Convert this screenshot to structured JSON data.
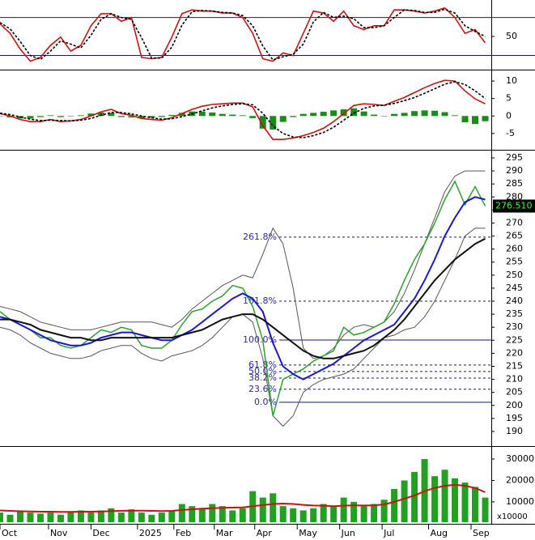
{
  "chart_data": [
    {
      "type": "stochastic",
      "ylim": [
        -1,
        105
      ],
      "yticks": [
        50
      ],
      "levels": [
        20,
        80
      ],
      "series": [
        {
          "color": "#cc1111",
          "values": [
            70,
            55,
            30,
            11,
            17,
            36,
            49,
            27,
            36,
            67,
            86,
            86,
            74,
            80,
            17,
            15,
            17,
            49,
            86,
            92,
            90,
            90,
            87,
            87,
            80,
            55,
            15,
            11,
            24,
            20,
            55,
            90,
            87,
            74,
            90,
            67,
            61,
            67,
            67,
            92,
            92,
            90,
            87,
            90,
            95,
            80,
            55,
            61,
            40
          ]
        },
        {
          "color": "#000000",
          "dashed": true,
          "values": [
            72,
            62,
            42,
            20,
            14,
            27,
            43,
            38,
            32,
            52,
            77,
            86,
            80,
            77,
            48,
            16,
            16,
            33,
            68,
            89,
            91,
            90,
            88,
            87,
            83,
            67,
            35,
            13,
            18,
            22,
            38,
            73,
            88,
            80,
            82,
            78,
            64,
            64,
            67,
            80,
            92,
            91,
            88,
            88,
            93,
            87,
            67,
            58,
            50
          ]
        }
      ]
    },
    {
      "type": "macd",
      "ylim": [
        -9.2,
        12.8
      ],
      "yticks": [
        10,
        5,
        0,
        -5
      ],
      "histogram": {
        "color": "#1a8a1a",
        "values": [
          -0.1,
          -0.4,
          -0.7,
          -0.7,
          -0.3,
          0.2,
          -0.3,
          0,
          0.2,
          0.7,
          1.0,
          0.9,
          -0.3,
          -0.4,
          -0.7,
          -0.5,
          -0.3,
          0.3,
          0.9,
          1.3,
          1.3,
          1.0,
          0.6,
          0.4,
          0.2,
          -0.6,
          -3.6,
          -3.9,
          -1.7,
          -0.3,
          0.6,
          0.9,
          1.2,
          1.6,
          1.9,
          2.2,
          1.3,
          0.4,
          -0.1,
          0.6,
          0.9,
          1.4,
          1.6,
          1.5,
          1.1,
          0.2,
          -1.8,
          -2.3,
          -1.5
        ]
      },
      "series": [
        {
          "color": "#cc1111",
          "values": [
            0.7,
            0,
            -1,
            -1.6,
            -1.6,
            -1,
            -1.6,
            -1.4,
            -1,
            0,
            1.2,
            1.9,
            0.7,
            0.2,
            -0.7,
            -1,
            -1.2,
            -0.5,
            0.7,
            1.9,
            2.8,
            3.3,
            3.5,
            3.7,
            3.7,
            2.6,
            -2.8,
            -6.7,
            -6.7,
            -6.3,
            -5.6,
            -4.7,
            -3.5,
            -1.6,
            0.7,
            3.0,
            3.5,
            3.3,
            3.0,
            4.2,
            5.3,
            6.7,
            8.1,
            9.3,
            10.2,
            10.0,
            7.2,
            4.9,
            3.5
          ]
        },
        {
          "color": "#000000",
          "dashed": true,
          "values": [
            0.8,
            0.4,
            -0.3,
            -0.9,
            -1.3,
            -1.2,
            -1.3,
            -1.4,
            -1.2,
            -0.7,
            0.2,
            1.0,
            1.0,
            0.6,
            0.0,
            -0.5,
            -0.9,
            -0.8,
            -0.2,
            0.6,
            1.5,
            2.3,
            2.9,
            3.3,
            3.5,
            3.2,
            0.8,
            -2.8,
            -5.0,
            -6.0,
            -6.2,
            -5.6,
            -4.7,
            -3.2,
            -1.2,
            0.8,
            2.2,
            2.9,
            3.1,
            3.6,
            4.4,
            5.3,
            6.5,
            7.8,
            9.1,
            9.8,
            9.0,
            7.2,
            5.0
          ]
        }
      ]
    },
    {
      "type": "price",
      "ylim": [
        184.7,
        297.8
      ],
      "yticks": [
        190,
        195,
        200,
        205,
        210,
        215,
        220,
        225,
        230,
        235,
        240,
        245,
        250,
        255,
        260,
        265,
        270,
        275,
        280,
        285,
        290,
        295
      ],
      "series": [
        {
          "color": "#555555",
          "width": 1,
          "values": [
            238,
            237,
            236,
            234,
            232,
            231,
            230,
            229,
            229,
            229,
            230,
            231,
            232,
            232,
            232,
            232,
            231,
            230,
            233,
            237,
            240,
            243,
            246,
            248,
            250,
            249,
            258,
            268,
            262,
            245,
            222,
            218,
            219,
            222,
            227,
            230,
            231,
            230,
            232,
            236,
            243,
            252,
            262,
            272,
            282,
            288,
            290,
            290,
            290
          ]
        },
        {
          "color": "#555555",
          "width": 1,
          "values": [
            230,
            229,
            227,
            224,
            222,
            220,
            219,
            218,
            218,
            219,
            221,
            222,
            223,
            223,
            220,
            218,
            217,
            219,
            220,
            221,
            223,
            226,
            230,
            234,
            235,
            232,
            218,
            196,
            192,
            196,
            205,
            208,
            210,
            211,
            212,
            214,
            218,
            222,
            226,
            227,
            229,
            230,
            234,
            240,
            248,
            256,
            265,
            268,
            268
          ]
        },
        {
          "color": "#2ea02e",
          "width": 1.5,
          "values": [
            236,
            233,
            231,
            229,
            226,
            226,
            223,
            222,
            223,
            226,
            229,
            228,
            230,
            229,
            223,
            222,
            222,
            225,
            231,
            236,
            237,
            240,
            242,
            246,
            245,
            238,
            225,
            196,
            210,
            212,
            214,
            217,
            219,
            221,
            230,
            227,
            228,
            230,
            232,
            239,
            248,
            256,
            262,
            270,
            279,
            286,
            277,
            284,
            276.51
          ]
        },
        {
          "color": "#1a1acc",
          "width": 2,
          "values": [
            234,
            233,
            231,
            229,
            227,
            225,
            224,
            223,
            223,
            224,
            226,
            227,
            228,
            228,
            227,
            226,
            225,
            225,
            227,
            229,
            232,
            235,
            238,
            241,
            243,
            241,
            236,
            224,
            215,
            212,
            210,
            212,
            214,
            216,
            219,
            222,
            225,
            227,
            229,
            231,
            236,
            241,
            248,
            256,
            265,
            272,
            278,
            280,
            279
          ]
        },
        {
          "color": "#111111",
          "width": 2,
          "values": [
            233,
            233,
            232,
            231,
            229,
            228,
            227,
            226,
            226,
            225,
            225,
            226,
            226,
            226,
            226,
            226,
            226,
            226,
            227,
            228,
            229,
            231,
            233,
            234,
            235,
            235,
            233,
            230,
            227,
            224,
            221,
            219,
            218,
            218,
            219,
            220,
            221,
            223,
            226,
            229,
            233,
            238,
            243,
            248,
            252,
            256,
            259,
            262,
            264
          ]
        }
      ],
      "fib_levels": [
        {
          "ratio_label": "261.8%",
          "price": 264.6,
          "dashed": true
        },
        {
          "ratio_label": "161.8%",
          "price": 240.0,
          "dashed": true
        },
        {
          "ratio_label": "100.0%",
          "price": 225.1,
          "dashed": false
        },
        {
          "ratio_label": "61.8%",
          "price": 215.5,
          "dashed": true
        },
        {
          "ratio_label": "50.0%",
          "price": 213.0,
          "dashed": true
        },
        {
          "ratio_label": "38.2%",
          "price": 210.5,
          "dashed": true
        },
        {
          "ratio_label": "23.6%",
          "price": 206.2,
          "dashed": true
        },
        {
          "ratio_label": "0.0%",
          "price": 201.2,
          "dashed": false
        }
      ],
      "last_price": {
        "value": 276.51,
        "label": "276.510"
      }
    },
    {
      "type": "volume",
      "ylim": [
        500,
        35300
      ],
      "yticks": [
        10000,
        20000,
        30000
      ],
      "multiplier_label": "x10000",
      "bars": {
        "color": "#22a022",
        "values": [
          5000,
          4000,
          6000,
          5000,
          4500,
          5000,
          4000,
          5500,
          6000,
          5000,
          6000,
          7000,
          5000,
          6500,
          5000,
          4000,
          5000,
          6000,
          9000,
          8000,
          7000,
          9000,
          8000,
          6000,
          7000,
          15000,
          12000,
          14000,
          8000,
          7000,
          6000,
          7000,
          9000,
          8000,
          12000,
          10000,
          8000,
          9000,
          11000,
          16000,
          20000,
          24000,
          30000,
          22000,
          25000,
          21000,
          19000,
          17000,
          12000
        ]
      },
      "series": [
        {
          "color": "#cc1111",
          "width": 2,
          "values": [
            6000,
            5800,
            5600,
            5500,
            5400,
            5400,
            5300,
            5300,
            5400,
            5400,
            5500,
            5700,
            5800,
            5900,
            5900,
            5800,
            5700,
            5800,
            6200,
            6500,
            6800,
            7000,
            7200,
            7300,
            7400,
            8000,
            8500,
            9000,
            9200,
            9000,
            8600,
            8300,
            8200,
            8000,
            8200,
            8400,
            8300,
            8400,
            8800,
            10000,
            11500,
            13000,
            15000,
            16500,
            17500,
            18000,
            17500,
            16500,
            14500
          ]
        }
      ],
      "xlim": [
        0,
        48.6
      ],
      "xticks": [
        {
          "value": 0,
          "label": "Oct"
        },
        {
          "value": 4.8,
          "label": "Nov"
        },
        {
          "value": 9,
          "label": "Dec"
        },
        {
          "value": 13.6,
          "label": "2025"
        },
        {
          "value": 17.2,
          "label": "Feb"
        },
        {
          "value": 21.2,
          "label": "Mar"
        },
        {
          "value": 25.2,
          "label": "Apr"
        },
        {
          "value": 29.4,
          "label": "May"
        },
        {
          "value": 33.6,
          "label": "Jun"
        },
        {
          "value": 37.8,
          "label": "Jul"
        },
        {
          "value": 42.4,
          "label": "Aug"
        },
        {
          "value": 46.6,
          "label": "Sep"
        }
      ]
    }
  ]
}
